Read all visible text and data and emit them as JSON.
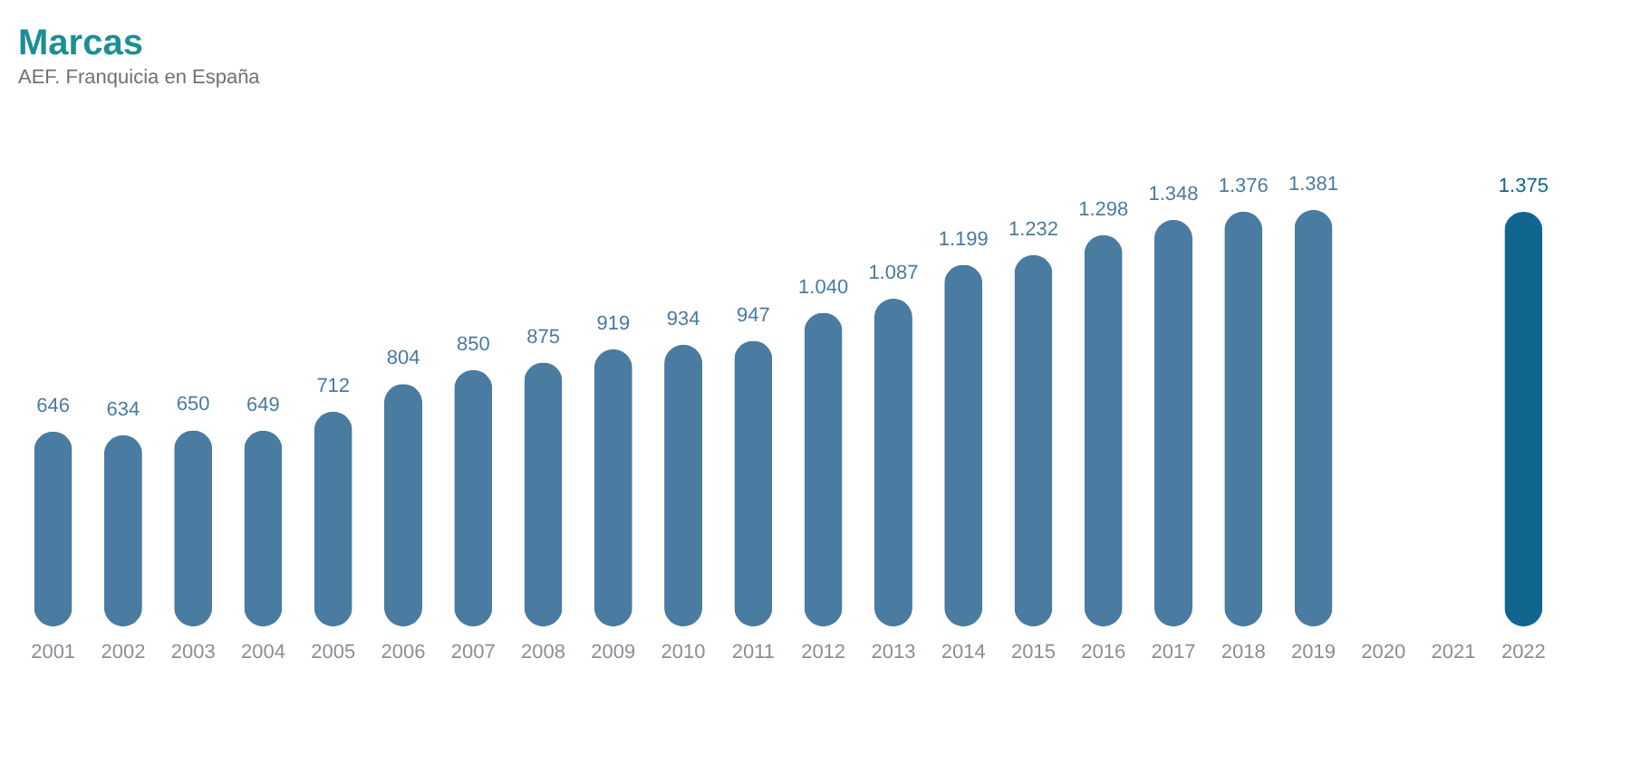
{
  "chart_data": {
    "type": "bar",
    "title": "Marcas",
    "subtitle": "AEF. Franquicia en España",
    "categories": [
      "2001",
      "2002",
      "2003",
      "2004",
      "2005",
      "2006",
      "2007",
      "2008",
      "2009",
      "2010",
      "2011",
      "2012",
      "2013",
      "2014",
      "2015",
      "2016",
      "2017",
      "2018",
      "2019",
      "2020",
      "2021",
      "2022"
    ],
    "values": [
      646,
      634,
      650,
      649,
      712,
      804,
      850,
      875,
      919,
      934,
      947,
      1040,
      1087,
      1199,
      1232,
      1298,
      1348,
      1376,
      1381,
      null,
      null,
      1375
    ],
    "value_labels": [
      "646",
      "634",
      "650",
      "649",
      "712",
      "804",
      "850",
      "875",
      "919",
      "934",
      "947",
      "1.040",
      "1.087",
      "1.199",
      "1.232",
      "1.298",
      "1.348",
      "1.376",
      "1.381",
      null,
      null,
      "1.375"
    ],
    "colors": [
      "#4a7ba0",
      "#4a7ba0",
      "#4a7ba0",
      "#4a7ba0",
      "#4a7ba0",
      "#4a7ba0",
      "#4a7ba0",
      "#4a7ba0",
      "#4a7ba0",
      "#4a7ba0",
      "#4a7ba0",
      "#4a7ba0",
      "#4a7ba0",
      "#4a7ba0",
      "#4a7ba0",
      "#4a7ba0",
      "#4a7ba0",
      "#4a7ba0",
      "#4a7ba0",
      "#4a7ba0",
      "#4a7ba0",
      "#11668f"
    ]
  }
}
